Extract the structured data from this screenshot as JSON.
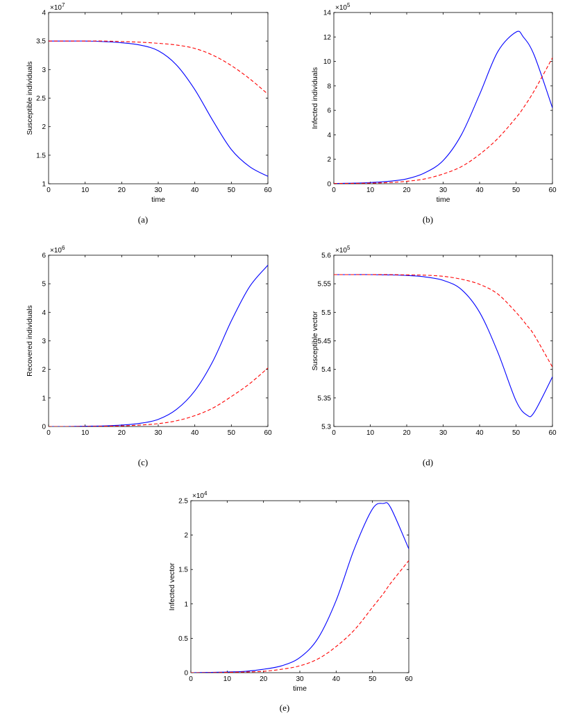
{
  "chart_data": [
    {
      "panel": "(a)",
      "type": "line",
      "xlabel": "time",
      "ylabel": "Susceptible individuals",
      "xlim": [
        0,
        60
      ],
      "ylim": [
        1,
        4
      ],
      "xticks": [
        "0",
        "10",
        "20",
        "30",
        "40",
        "50",
        "60"
      ],
      "yticks": [
        "1",
        "1.5",
        "2",
        "2.5",
        "3",
        "3.5",
        "4"
      ],
      "y_multiplier": {
        "base": "×10",
        "exp": "7"
      },
      "x": [
        0,
        5,
        10,
        15,
        20,
        25,
        30,
        35,
        40,
        45,
        50,
        55,
        60
      ],
      "series": [
        {
          "color": "#0000ff",
          "style": "solid",
          "values": [
            3.5,
            3.5,
            3.5,
            3.49,
            3.47,
            3.43,
            3.33,
            3.08,
            2.65,
            2.1,
            1.6,
            1.3,
            1.13
          ]
        },
        {
          "color": "#ff0000",
          "style": "dashed",
          "values": [
            3.5,
            3.5,
            3.5,
            3.5,
            3.49,
            3.48,
            3.46,
            3.43,
            3.37,
            3.25,
            3.07,
            2.84,
            2.57
          ]
        }
      ]
    },
    {
      "panel": "(b)",
      "type": "line",
      "xlabel": "time",
      "ylabel": "Infected individuals",
      "xlim": [
        0,
        60
      ],
      "ylim": [
        0,
        14
      ],
      "xticks": [
        "0",
        "10",
        "20",
        "30",
        "40",
        "50",
        "60"
      ],
      "yticks": [
        "0",
        "2",
        "4",
        "6",
        "8",
        "10",
        "12",
        "14"
      ],
      "y_multiplier": {
        "base": "×10",
        "exp": "5"
      },
      "x": [
        0,
        5,
        10,
        15,
        20,
        25,
        30,
        35,
        40,
        45,
        50,
        52,
        55,
        60
      ],
      "series": [
        {
          "color": "#0000ff",
          "style": "solid",
          "values": [
            0.02,
            0.05,
            0.1,
            0.2,
            0.4,
            0.9,
            1.9,
            4.0,
            7.3,
            10.8,
            12.4,
            12.0,
            10.5,
            6.2
          ]
        },
        {
          "color": "#ff0000",
          "style": "dashed",
          "values": [
            0.02,
            0.03,
            0.05,
            0.1,
            0.2,
            0.4,
            0.8,
            1.4,
            2.4,
            3.7,
            5.4,
            6.2,
            7.6,
            10.3
          ]
        }
      ]
    },
    {
      "panel": "(c)",
      "type": "line",
      "xlabel": "",
      "ylabel": "Recovered individuals",
      "xlim": [
        0,
        60
      ],
      "ylim": [
        0,
        6
      ],
      "xticks": [
        "0",
        "10",
        "20",
        "30",
        "40",
        "50",
        "60"
      ],
      "yticks": [
        "0",
        "1",
        "2",
        "3",
        "4",
        "5",
        "6"
      ],
      "y_multiplier": {
        "base": "×10",
        "exp": "6"
      },
      "x": [
        0,
        5,
        10,
        15,
        20,
        25,
        30,
        35,
        40,
        45,
        50,
        55,
        60
      ],
      "series": [
        {
          "color": "#0000ff",
          "style": "solid",
          "values": [
            0.0,
            0.0,
            0.01,
            0.02,
            0.05,
            0.11,
            0.25,
            0.6,
            1.25,
            2.3,
            3.7,
            4.9,
            5.65
          ]
        },
        {
          "color": "#ff0000",
          "style": "dashed",
          "values": [
            0.0,
            0.0,
            0.0,
            0.01,
            0.02,
            0.05,
            0.1,
            0.2,
            0.38,
            0.65,
            1.05,
            1.5,
            2.05
          ]
        }
      ]
    },
    {
      "panel": "(d)",
      "type": "line",
      "xlabel": "",
      "ylabel": "Susceptible vector",
      "xlim": [
        0,
        60
      ],
      "ylim": [
        5.3,
        5.6
      ],
      "xticks": [
        "0",
        "10",
        "20",
        "30",
        "40",
        "50",
        "60"
      ],
      "yticks": [
        "5.3",
        "5.35",
        "5.4",
        "5.45",
        "5.5",
        "5.55",
        "5.6"
      ],
      "y_multiplier": {
        "base": "×10",
        "exp": "5"
      },
      "x": [
        0,
        5,
        10,
        15,
        20,
        25,
        30,
        35,
        40,
        45,
        50,
        53,
        55,
        60
      ],
      "series": [
        {
          "color": "#0000ff",
          "style": "solid",
          "values": [
            5.566,
            5.566,
            5.566,
            5.5655,
            5.5645,
            5.562,
            5.556,
            5.54,
            5.5,
            5.43,
            5.345,
            5.32,
            5.325,
            5.387
          ]
        },
        {
          "color": "#ff0000",
          "style": "dashed",
          "values": [
            5.566,
            5.566,
            5.566,
            5.566,
            5.5655,
            5.565,
            5.563,
            5.558,
            5.549,
            5.532,
            5.5,
            5.477,
            5.46,
            5.404
          ]
        }
      ]
    },
    {
      "panel": "(e)",
      "type": "line",
      "xlabel": "time",
      "ylabel": "Infected vector",
      "xlim": [
        0,
        60
      ],
      "ylim": [
        0,
        2.5
      ],
      "xticks": [
        "0",
        "10",
        "20",
        "30",
        "40",
        "50",
        "60"
      ],
      "yticks": [
        "0",
        "0.5",
        "1",
        "1.5",
        "2",
        "2.5"
      ],
      "y_multiplier": {
        "base": "×10",
        "exp": "4"
      },
      "x": [
        0,
        5,
        10,
        15,
        20,
        25,
        30,
        35,
        40,
        45,
        50,
        53,
        55,
        60
      ],
      "series": [
        {
          "color": "#0000ff",
          "style": "solid",
          "values": [
            0.0,
            0.005,
            0.01,
            0.02,
            0.05,
            0.1,
            0.22,
            0.5,
            1.05,
            1.8,
            2.38,
            2.46,
            2.4,
            1.8
          ]
        },
        {
          "color": "#ff0000",
          "style": "dashed",
          "values": [
            0.0,
            0.0,
            0.005,
            0.01,
            0.02,
            0.05,
            0.1,
            0.2,
            0.38,
            0.62,
            0.95,
            1.15,
            1.3,
            1.63
          ]
        }
      ]
    }
  ]
}
